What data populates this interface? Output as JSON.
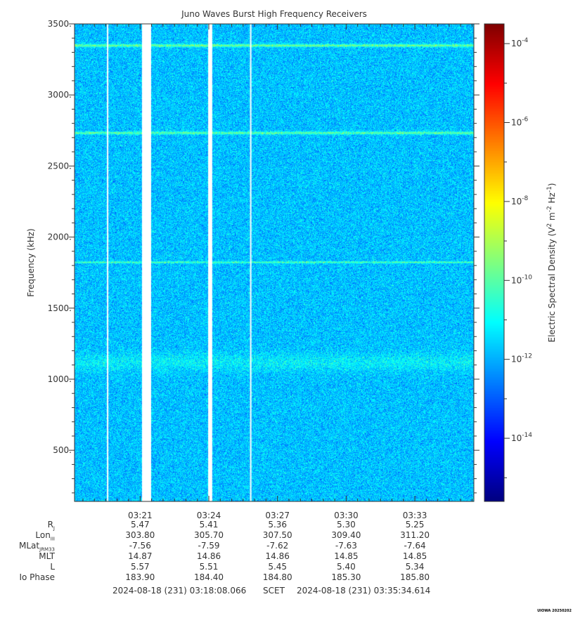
{
  "chart_data": {
    "type": "heatmap",
    "title": "Juno Waves Burst High Frequency Receivers",
    "ylabel": "Frequency (kHz)",
    "ylim": [
      140,
      3500
    ],
    "yticks": [
      "3500.",
      "3000.",
      "2500.",
      "2000.",
      "1500.",
      "1000.",
      "500."
    ],
    "ytick_values": [
      3500,
      3000,
      2500,
      2000,
      1500,
      1000,
      500
    ],
    "x_start_min": 198.134,
    "x_end_min": 215.577,
    "xticks": [
      "03:21",
      "03:24",
      "03:27",
      "03:30",
      "03:33"
    ],
    "xtick_values_min": [
      201,
      204,
      207,
      210,
      213
    ],
    "background_level": -11.8,
    "emission_lines": [
      {
        "freq_khz": 3350,
        "level": -9.8
      },
      {
        "freq_khz": 2735,
        "level": -10.0
      },
      {
        "freq_khz": 1825,
        "level": -10.2
      },
      {
        "freq_khz": 1120,
        "level": -11.2
      }
    ],
    "gaps_min": [
      [
        199.55,
        199.6
      ],
      [
        201.08,
        201.48
      ],
      [
        203.97,
        204.15
      ],
      [
        205.8,
        205.85
      ]
    ],
    "colorbar": {
      "label_main": "Electric Spectral Density (V",
      "label_sup1": "2",
      "label_m": " m",
      "label_sup2": "-2",
      "label_hz": " Hz",
      "label_sup3": "-1",
      "label_end": ")",
      "log_min": -15.6,
      "log_max": -3.5,
      "tick_base": "10",
      "ticks": [
        -4,
        -6,
        -8,
        -10,
        -12,
        -14
      ],
      "tick_exps": [
        "-4",
        "-6",
        "-8",
        "-10",
        "-12",
        "-14"
      ]
    }
  },
  "ephemeris": {
    "rows": [
      {
        "name": "R",
        "sub": "J",
        "values": [
          "5.47",
          "5.41",
          "5.36",
          "5.30",
          "5.25"
        ]
      },
      {
        "name": "Lon",
        "sub": "III",
        "values": [
          "303.80",
          "305.70",
          "307.50",
          "309.40",
          "311.20"
        ]
      },
      {
        "name": "MLat",
        "sub": "JRM33",
        "values": [
          "-7.56",
          "-7.59",
          "-7.62",
          "-7.63",
          "-7.64"
        ]
      },
      {
        "name": "MLT",
        "sub": "",
        "values": [
          "14.87",
          "14.86",
          "14.86",
          "14.85",
          "14.85"
        ]
      },
      {
        "name": "L",
        "sub": "",
        "values": [
          "5.57",
          "5.51",
          "5.45",
          "5.40",
          "5.34"
        ]
      },
      {
        "name": "Io Phase",
        "sub": "",
        "values": [
          "183.90",
          "184.40",
          "184.80",
          "185.30",
          "185.80"
        ]
      }
    ]
  },
  "scet": {
    "start": "2024-08-18 (231) 03:18:08.066",
    "label": "SCET",
    "end": "2024-08-18 (231) 03:35:34.614"
  },
  "credit": "UIOWA 20250202"
}
